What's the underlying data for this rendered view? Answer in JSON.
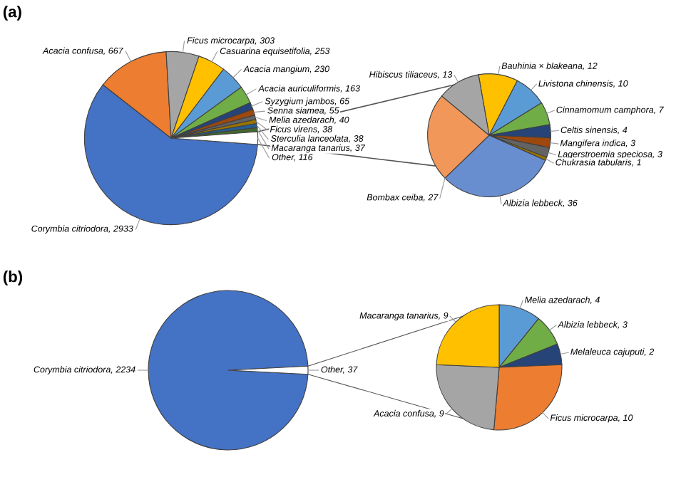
{
  "chart_data": [
    {
      "type": "pie",
      "title": "(a)",
      "categories": [
        "Corymbia citriodora",
        "Acacia confusa",
        "Ficus microcarpa",
        "Casuarina equisetifolia",
        "Acacia mangium",
        "Acacia auriculiformis",
        "Syzygium jambos",
        "Senna siamea",
        "Melia azedarach",
        "Ficus virens",
        "Sterculia lanceolata",
        "Macaranga tanarius",
        "Other"
      ],
      "values": [
        2933,
        667,
        303,
        253,
        230,
        163,
        65,
        55,
        40,
        38,
        38,
        37,
        116
      ],
      "colors": [
        "#4472c4",
        "#ed7d31",
        "#a5a5a5",
        "#ffc000",
        "#5b9bd5",
        "#70ad47",
        "#264478",
        "#9e480e",
        "#636363",
        "#997300",
        "#255e91",
        "#43682b",
        "#ffffff"
      ],
      "value_labels": [
        ", 2933",
        ", 667",
        ", 303",
        ", 253",
        ", 230",
        ", 163",
        ", 65",
        ", 55",
        ", 40",
        ", 38",
        ", 38",
        ", 37",
        ", 116"
      ]
    },
    {
      "type": "pie",
      "categories": [
        "Bauhinia × blakeana",
        "Livistona chinensis",
        "Cinnamomum camphora",
        "Celtis sinensis",
        "Mangifera indica",
        "Lagerstroemia speciosa",
        "Chukrasia tabularis",
        "Albizia lebbeck",
        "Bombax ceiba",
        "Hibiscus tiliaceus"
      ],
      "values": [
        12,
        10,
        7,
        4,
        3,
        3,
        1,
        36,
        27,
        13
      ],
      "colors": [
        "#ffc000",
        "#5b9bd5",
        "#70ad47",
        "#264478",
        "#9e480e",
        "#636363",
        "#997300",
        "#698ed0",
        "#f1975a",
        "#a5a5a5"
      ],
      "value_labels": [
        ", 12",
        ", 10",
        ", 7",
        ", 4",
        ", 3",
        ", 3",
        ", 1",
        ", 36",
        ", 27",
        ", 13"
      ]
    },
    {
      "type": "pie",
      "title": "(b)",
      "categories": [
        "Corymbia citriodora",
        "Other"
      ],
      "values": [
        2234,
        37
      ],
      "colors": [
        "#4472c4",
        "#ffffff"
      ],
      "value_labels": [
        ", 2234",
        ", 37"
      ]
    },
    {
      "type": "pie",
      "categories": [
        "Melia azedarach",
        "Albizia lebbeck",
        "Melaleuca cajuputi",
        "Ficus microcarpa",
        "Acacia confusa",
        "Macaranga tanarius"
      ],
      "values": [
        4,
        3,
        2,
        10,
        9,
        9
      ],
      "colors": [
        "#5b9bd5",
        "#70ad47",
        "#264478",
        "#ed7d31",
        "#a5a5a5",
        "#ffc000"
      ],
      "value_labels": [
        ", 4",
        ", 3",
        ", 2",
        ", 10",
        ", 9",
        ", 9"
      ]
    }
  ]
}
